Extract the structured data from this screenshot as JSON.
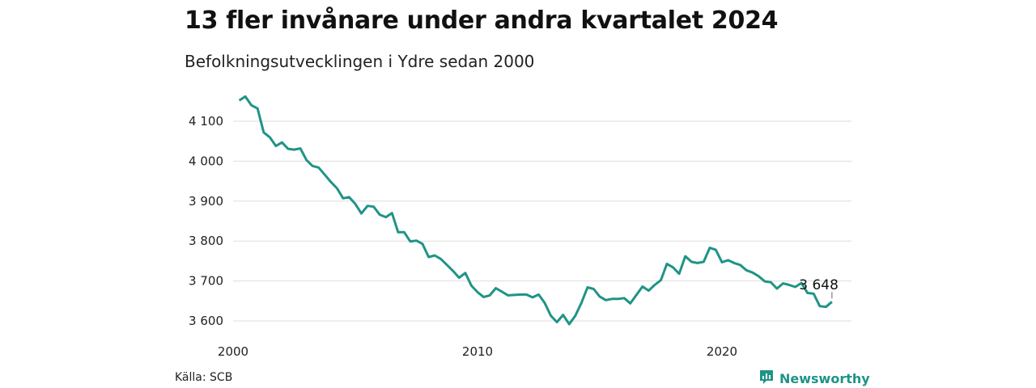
{
  "header": {
    "title": "13 fler invånare under andra kvartalet 2024",
    "subtitle": "Befolkningsutvecklingen i Ydre sedan 2000"
  },
  "footer": {
    "source": "Källa: SCB",
    "brand": "Newsworthy",
    "brand_icon": "chart-bars-icon"
  },
  "colors": {
    "line": "#1f9486",
    "grid": "#dddddd",
    "brand": "#1f9486"
  },
  "chart_data": {
    "type": "line",
    "title": "13 fler invånare under andra kvartalet 2024",
    "subtitle": "Befolkningsutvecklingen i Ydre sedan 2000",
    "xlabel": "",
    "ylabel": "",
    "xlim": [
      2000,
      2025.25
    ],
    "ylim": [
      3580,
      4170
    ],
    "yticks": [
      3600,
      3700,
      3800,
      3900,
      4000,
      4100
    ],
    "ytick_labels": [
      "3 600",
      "3 700",
      "3 800",
      "3 900",
      "4 000",
      "4 100"
    ],
    "xticks": [
      2000,
      2010,
      2020
    ],
    "xtick_labels": [
      "2000",
      "2010",
      "2020"
    ],
    "grid": true,
    "annotation": {
      "x": 2024.5,
      "y": 3648,
      "label": "3 648"
    },
    "series": [
      {
        "x": [
          2000.25,
          2000.5,
          2000.75,
          2001.0,
          2001.25,
          2001.5,
          2001.75,
          2002.0,
          2002.25,
          2002.5,
          2002.75,
          2003.0,
          2003.25,
          2003.5,
          2003.75,
          2004.0,
          2004.25,
          2004.5,
          2004.75,
          2005.0,
          2005.25,
          2005.5,
          2005.75,
          2006.0,
          2006.25,
          2006.5,
          2006.75,
          2007.0,
          2007.25,
          2007.5,
          2007.75,
          2008.0,
          2008.25,
          2008.5,
          2008.75,
          2009.0,
          2009.25,
          2009.5,
          2009.75,
          2010.0,
          2010.25,
          2010.5,
          2010.75,
          2011.0,
          2011.25,
          2011.5,
          2011.75,
          2012.0,
          2012.25,
          2012.5,
          2012.75,
          2013.0,
          2013.25,
          2013.5,
          2013.75,
          2014.0,
          2014.25,
          2014.5,
          2014.75,
          2015.0,
          2015.25,
          2015.5,
          2015.75,
          2016.0,
          2016.25,
          2016.5,
          2016.75,
          2017.0,
          2017.25,
          2017.5,
          2017.75,
          2018.0,
          2018.25,
          2018.5,
          2018.75,
          2019.0,
          2019.25,
          2019.5,
          2019.75,
          2020.0,
          2020.25,
          2020.5,
          2020.75,
          2021.0,
          2021.25,
          2021.5,
          2021.75,
          2022.0,
          2022.25,
          2022.5,
          2022.75,
          2023.0,
          2023.25,
          2023.5,
          2023.75,
          2024.0,
          2024.25,
          2024.5
        ],
        "y": [
          4152,
          4162,
          4140,
          4132,
          4072,
          4060,
          4038,
          4047,
          4031,
          4029,
          4032,
          4003,
          3988,
          3984,
          3966,
          3948,
          3932,
          3907,
          3910,
          3893,
          3869,
          3888,
          3886,
          3866,
          3860,
          3870,
          3822,
          3822,
          3799,
          3801,
          3793,
          3760,
          3764,
          3755,
          3740,
          3725,
          3708,
          3720,
          3688,
          3672,
          3660,
          3664,
          3682,
          3673,
          3664,
          3665,
          3666,
          3666,
          3659,
          3666,
          3645,
          3613,
          3597,
          3615,
          3592,
          3613,
          3645,
          3684,
          3680,
          3661,
          3652,
          3655,
          3655,
          3657,
          3644,
          3665,
          3686,
          3676,
          3690,
          3702,
          3743,
          3734,
          3718,
          3762,
          3748,
          3745,
          3748,
          3783,
          3778,
          3747,
          3752,
          3745,
          3740,
          3727,
          3721,
          3712,
          3699,
          3697,
          3681,
          3694,
          3690,
          3685,
          3695,
          3670,
          3668,
          3637,
          3635,
          3648
        ]
      }
    ]
  }
}
